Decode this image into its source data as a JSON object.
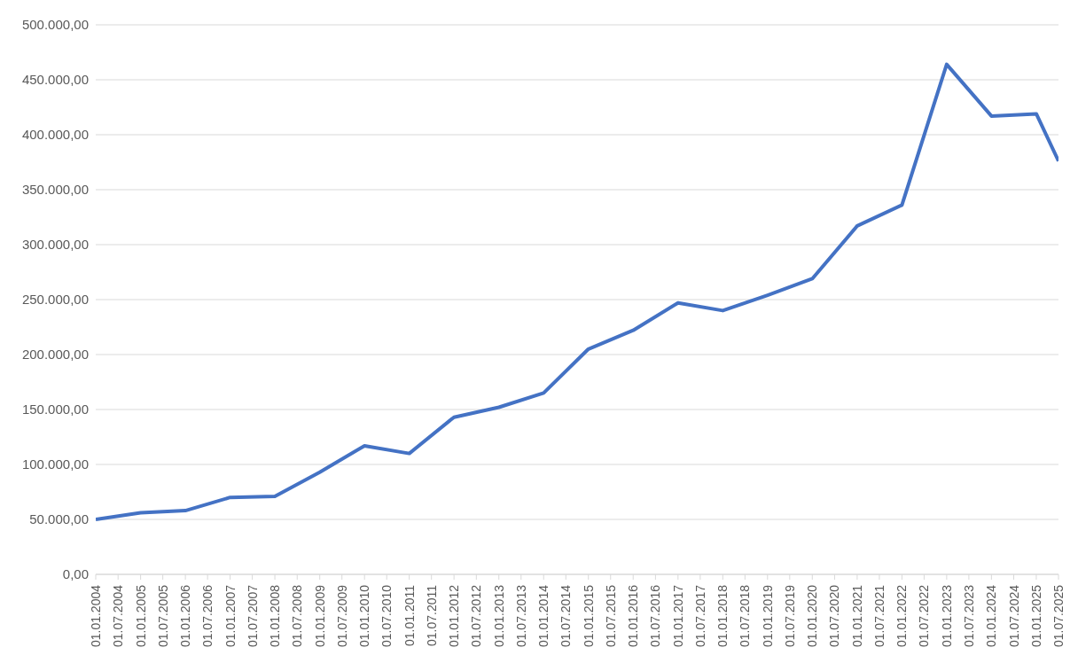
{
  "chart_data": {
    "type": "line",
    "x": [
      "2004-01-01",
      "2005-01-01",
      "2006-01-01",
      "2007-01-01",
      "2008-01-01",
      "2009-01-01",
      "2010-01-01",
      "2011-01-01",
      "2012-01-01",
      "2013-01-01",
      "2014-01-01",
      "2015-01-01",
      "2016-01-01",
      "2017-01-01",
      "2018-01-01",
      "2019-01-01",
      "2020-01-01",
      "2021-01-01",
      "2022-01-01",
      "2023-01-01",
      "2024-01-01",
      "2025-01-01",
      "2025-07-01"
    ],
    "series": [
      {
        "color": "#4472c4",
        "values": [
          50000,
          56000,
          58000,
          70000,
          71000,
          93000,
          117000,
          110000,
          143000,
          152000,
          165000,
          205000,
          222000,
          247000,
          240000,
          254000,
          269000,
          317000,
          336000,
          464000,
          417000,
          419000,
          376000
        ]
      }
    ],
    "xlim": [
      "2004-01-01",
      "2025-07-01"
    ],
    "xticks": [
      {
        "value": "2004-01-01",
        "label": "01.01.2004"
      },
      {
        "value": "2004-07-01",
        "label": "01.07.2004"
      },
      {
        "value": "2005-01-01",
        "label": "01.01.2005"
      },
      {
        "value": "2005-07-01",
        "label": "01.07.2005"
      },
      {
        "value": "2006-01-01",
        "label": "01.01.2006"
      },
      {
        "value": "2006-07-01",
        "label": "01.07.2006"
      },
      {
        "value": "2007-01-01",
        "label": "01.01.2007"
      },
      {
        "value": "2007-07-01",
        "label": "01.07.2007"
      },
      {
        "value": "2008-01-01",
        "label": "01.01.2008"
      },
      {
        "value": "2008-07-01",
        "label": "01.07.2008"
      },
      {
        "value": "2009-01-01",
        "label": "01.01.2009"
      },
      {
        "value": "2009-07-01",
        "label": "01.07.2009"
      },
      {
        "value": "2010-01-01",
        "label": "01.01.2010"
      },
      {
        "value": "2010-07-01",
        "label": "01.07.2010"
      },
      {
        "value": "2011-01-01",
        "label": "01.01.2011"
      },
      {
        "value": "2011-07-01",
        "label": "01.07.2011"
      },
      {
        "value": "2012-01-01",
        "label": "01.01.2012"
      },
      {
        "value": "2012-07-01",
        "label": "01.07.2012"
      },
      {
        "value": "2013-01-01",
        "label": "01.01.2013"
      },
      {
        "value": "2013-07-01",
        "label": "01.07.2013"
      },
      {
        "value": "2014-01-01",
        "label": "01.01.2014"
      },
      {
        "value": "2014-07-01",
        "label": "01.07.2014"
      },
      {
        "value": "2015-01-01",
        "label": "01.01.2015"
      },
      {
        "value": "2015-07-01",
        "label": "01.07.2015"
      },
      {
        "value": "2016-01-01",
        "label": "01.01.2016"
      },
      {
        "value": "2016-07-01",
        "label": "01.07.2016"
      },
      {
        "value": "2017-01-01",
        "label": "01.01.2017"
      },
      {
        "value": "2017-07-01",
        "label": "01.07.2017"
      },
      {
        "value": "2018-01-01",
        "label": "01.01.2018"
      },
      {
        "value": "2018-07-01",
        "label": "01.07.2018"
      },
      {
        "value": "2019-01-01",
        "label": "01.01.2019"
      },
      {
        "value": "2019-07-01",
        "label": "01.07.2019"
      },
      {
        "value": "2020-01-01",
        "label": "01.01.2020"
      },
      {
        "value": "2020-07-01",
        "label": "01.07.2020"
      },
      {
        "value": "2021-01-01",
        "label": "01.01.2021"
      },
      {
        "value": "2021-07-01",
        "label": "01.07.2021"
      },
      {
        "value": "2022-01-01",
        "label": "01.01.2022"
      },
      {
        "value": "2022-07-01",
        "label": "01.07.2022"
      },
      {
        "value": "2023-01-01",
        "label": "01.01.2023"
      },
      {
        "value": "2023-07-01",
        "label": "01.07.2023"
      },
      {
        "value": "2024-01-01",
        "label": "01.01.2024"
      },
      {
        "value": "2024-07-01",
        "label": "01.07.2024"
      },
      {
        "value": "2025-01-01",
        "label": "01.01.2025"
      },
      {
        "value": "2025-07-01",
        "label": "01.07.2025"
      }
    ],
    "ylim": [
      0,
      500000
    ],
    "yticks": [
      {
        "value": 0,
        "label": "0,00"
      },
      {
        "value": 50000,
        "label": "50.000,00"
      },
      {
        "value": 100000,
        "label": "100.000,00"
      },
      {
        "value": 150000,
        "label": "150.000,00"
      },
      {
        "value": 200000,
        "label": "200.000,00"
      },
      {
        "value": 250000,
        "label": "250.000,00"
      },
      {
        "value": 300000,
        "label": "300.000,00"
      },
      {
        "value": 350000,
        "label": "350.000,00"
      },
      {
        "value": 400000,
        "label": "400.000,00"
      },
      {
        "value": 450000,
        "label": "450.000,00"
      },
      {
        "value": 500000,
        "label": "500.000,00"
      }
    ],
    "grid": "y"
  }
}
